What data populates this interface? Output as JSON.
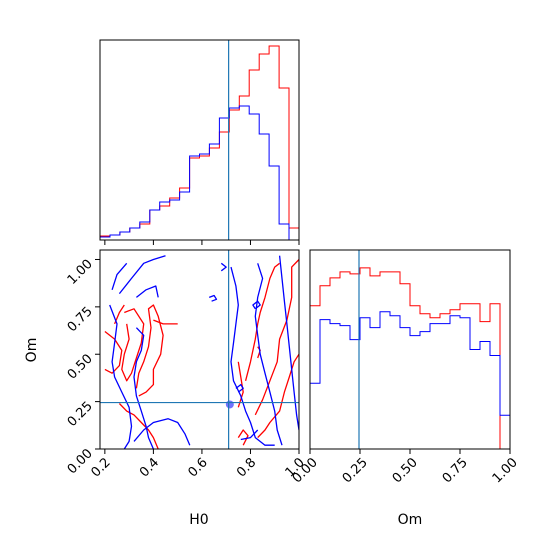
{
  "chart_data": {
    "type": "corner",
    "params": [
      "H0",
      "Om"
    ],
    "truth": {
      "H0": 0.71,
      "Om": 0.245
    },
    "colors": {
      "red": "#ff0000",
      "blue": "#0000ff",
      "truth": "#1f77b4"
    },
    "hist_H0": {
      "range": [
        0.18,
        1.0
      ],
      "edges": [
        0.18,
        0.221,
        0.262,
        0.303,
        0.344,
        0.385,
        0.426,
        0.467,
        0.508,
        0.549,
        0.59,
        0.631,
        0.672,
        0.713,
        0.754,
        0.795,
        0.836,
        0.877,
        0.918,
        0.959,
        1.0
      ],
      "series": [
        {
          "color": "red",
          "values": [
            0.02,
            0.025,
            0.04,
            0.06,
            0.08,
            0.15,
            0.17,
            0.21,
            0.26,
            0.41,
            0.42,
            0.46,
            0.54,
            0.65,
            0.72,
            0.85,
            0.93,
            0.97,
            0.76,
            0.06
          ]
        },
        {
          "color": "blue",
          "values": [
            0.015,
            0.025,
            0.04,
            0.06,
            0.09,
            0.15,
            0.19,
            0.2,
            0.24,
            0.42,
            0.43,
            0.48,
            0.61,
            0.66,
            0.67,
            0.63,
            0.53,
            0.37,
            0.08,
            0.0
          ]
        }
      ]
    },
    "hist_Om": {
      "range": [
        0.0,
        1.0
      ],
      "edges": [
        0.0,
        0.05,
        0.1,
        0.15,
        0.2,
        0.25,
        0.3,
        0.35,
        0.4,
        0.45,
        0.5,
        0.55,
        0.6,
        0.65,
        0.7,
        0.75,
        0.8,
        0.85,
        0.9,
        0.95,
        1.0
      ],
      "series": [
        {
          "color": "red",
          "values": [
            0.72,
            0.82,
            0.86,
            0.89,
            0.88,
            0.91,
            0.87,
            0.89,
            0.89,
            0.83,
            0.72,
            0.68,
            0.66,
            0.68,
            0.7,
            0.73,
            0.73,
            0.64,
            0.73,
            0.0
          ]
        },
        {
          "color": "blue",
          "values": [
            0.33,
            0.65,
            0.63,
            0.62,
            0.55,
            0.66,
            0.61,
            0.69,
            0.67,
            0.61,
            0.57,
            0.59,
            0.63,
            0.63,
            0.67,
            0.66,
            0.5,
            0.54,
            0.47,
            0.17
          ]
        }
      ]
    },
    "joint": {
      "x_range": [
        0.18,
        1.0
      ],
      "y_range": [
        0.0,
        1.05
      ],
      "contours": [
        {
          "color": "red",
          "points": [
            [
              0.2,
              0.62
            ],
            [
              0.24,
              0.58
            ],
            [
              0.27,
              0.52
            ],
            [
              0.26,
              0.44
            ],
            [
              0.23,
              0.4
            ],
            [
              0.2,
              0.42
            ]
          ]
        },
        {
          "color": "red",
          "points": [
            [
              0.28,
              0.72
            ],
            [
              0.32,
              0.74
            ],
            [
              0.36,
              0.66
            ],
            [
              0.35,
              0.56
            ],
            [
              0.33,
              0.48
            ],
            [
              0.31,
              0.4
            ],
            [
              0.29,
              0.36
            ],
            [
              0.27,
              0.42
            ],
            [
              0.28,
              0.5
            ],
            [
              0.3,
              0.58
            ],
            [
              0.29,
              0.66
            ]
          ]
        },
        {
          "color": "red",
          "points": [
            [
              0.34,
              0.28
            ],
            [
              0.37,
              0.3
            ],
            [
              0.4,
              0.34
            ],
            [
              0.4,
              0.42
            ],
            [
              0.43,
              0.5
            ],
            [
              0.44,
              0.6
            ],
            [
              0.42,
              0.7
            ],
            [
              0.4,
              0.76
            ],
            [
              0.38,
              0.74
            ],
            [
              0.39,
              0.64
            ],
            [
              0.38,
              0.54
            ],
            [
              0.36,
              0.46
            ],
            [
              0.34,
              0.4
            ],
            [
              0.33,
              0.32
            ]
          ]
        },
        {
          "color": "red",
          "points": [
            [
              0.26,
              0.24
            ],
            [
              0.29,
              0.2
            ],
            [
              0.32,
              0.18
            ],
            [
              0.35,
              0.14
            ],
            [
              0.38,
              0.1
            ],
            [
              0.4,
              0.06
            ],
            [
              0.42,
              0.0
            ]
          ]
        },
        {
          "color": "red",
          "points": [
            [
              0.4,
              0.68
            ],
            [
              0.44,
              0.66
            ],
            [
              0.5,
              0.66
            ]
          ]
        },
        {
          "color": "red",
          "points": [
            [
              0.24,
              0.66
            ],
            [
              0.26,
              0.72
            ],
            [
              0.28,
              0.76
            ]
          ]
        },
        {
          "color": "red",
          "points": [
            [
              0.77,
              0.02
            ],
            [
              0.79,
              0.07
            ],
            [
              0.77,
              0.1
            ],
            [
              0.75,
              0.06
            ]
          ]
        },
        {
          "color": "red",
          "points": [
            [
              0.82,
              0.18
            ],
            [
              0.85,
              0.26
            ],
            [
              0.88,
              0.36
            ],
            [
              0.91,
              0.46
            ],
            [
              0.92,
              0.58
            ],
            [
              0.95,
              0.68
            ],
            [
              0.97,
              0.8
            ],
            [
              0.97,
              0.96
            ],
            [
              1.0,
              1.0
            ]
          ]
        },
        {
          "color": "red",
          "points": [
            [
              0.78,
              0.36
            ],
            [
              0.8,
              0.46
            ],
            [
              0.82,
              0.58
            ],
            [
              0.83,
              0.66
            ],
            [
              0.84,
              0.72
            ],
            [
              0.86,
              0.8
            ],
            [
              0.88,
              0.9
            ],
            [
              0.9,
              0.96
            ],
            [
              0.92,
              0.98
            ]
          ]
        },
        {
          "color": "red",
          "points": [
            [
              0.83,
              0.06
            ],
            [
              0.86,
              0.1
            ],
            [
              0.88,
              0.14
            ],
            [
              0.92,
              0.2
            ],
            [
              0.94,
              0.3
            ],
            [
              0.96,
              0.38
            ],
            [
              0.98,
              0.46
            ],
            [
              1.0,
              0.5
            ]
          ]
        },
        {
          "color": "red",
          "points": [
            [
              0.75,
              0.22
            ],
            [
              0.77,
              0.3
            ],
            [
              0.76,
              0.38
            ],
            [
              0.75,
              0.46
            ]
          ]
        },
        {
          "color": "red",
          "points": [
            [
              0.83,
              0.48
            ],
            [
              0.84,
              0.52
            ],
            [
              0.83,
              0.54
            ]
          ]
        },
        {
          "color": "blue",
          "points": [
            [
              0.22,
              0.76
            ],
            [
              0.25,
              0.66
            ],
            [
              0.24,
              0.56
            ],
            [
              0.23,
              0.46
            ],
            [
              0.24,
              0.38
            ],
            [
              0.27,
              0.3
            ],
            [
              0.3,
              0.22
            ],
            [
              0.31,
              0.12
            ],
            [
              0.3,
              0.04
            ],
            [
              0.28,
              0.0
            ]
          ]
        },
        {
          "color": "blue",
          "points": [
            [
              0.26,
              0.82
            ],
            [
              0.31,
              0.9
            ],
            [
              0.36,
              0.98
            ],
            [
              0.4,
              1.0
            ],
            [
              0.45,
              1.02
            ]
          ]
        },
        {
          "color": "blue",
          "points": [
            [
              0.23,
              0.84
            ],
            [
              0.25,
              0.92
            ],
            [
              0.29,
              0.98
            ]
          ]
        },
        {
          "color": "blue",
          "points": [
            [
              0.33,
              0.64
            ],
            [
              0.36,
              0.6
            ],
            [
              0.35,
              0.52
            ],
            [
              0.33,
              0.46
            ],
            [
              0.32,
              0.38
            ],
            [
              0.33,
              0.28
            ],
            [
              0.35,
              0.2
            ],
            [
              0.37,
              0.12
            ],
            [
              0.38,
              0.06
            ],
            [
              0.4,
              0.0
            ]
          ]
        },
        {
          "color": "blue",
          "points": [
            [
              0.32,
              0.04
            ],
            [
              0.36,
              0.1
            ],
            [
              0.4,
              0.14
            ],
            [
              0.46,
              0.16
            ],
            [
              0.5,
              0.14
            ],
            [
              0.53,
              0.08
            ],
            [
              0.55,
              0.02
            ]
          ]
        },
        {
          "color": "blue",
          "points": [
            [
              0.33,
              0.8
            ],
            [
              0.37,
              0.84
            ],
            [
              0.41,
              0.86
            ],
            [
              0.42,
              0.8
            ]
          ]
        },
        {
          "color": "blue",
          "points": [
            [
              0.68,
              0.94
            ],
            [
              0.7,
              0.96
            ],
            [
              0.68,
              0.98
            ]
          ]
        },
        {
          "color": "blue",
          "points": [
            [
              0.64,
              0.78
            ],
            [
              0.66,
              0.79
            ],
            [
              0.65,
              0.81
            ],
            [
              0.63,
              0.8
            ]
          ]
        },
        {
          "color": "blue",
          "points": [
            [
              0.72,
              0.96
            ],
            [
              0.74,
              0.86
            ],
            [
              0.75,
              0.76
            ],
            [
              0.74,
              0.66
            ],
            [
              0.73,
              0.56
            ],
            [
              0.72,
              0.46
            ],
            [
              0.73,
              0.36
            ],
            [
              0.76,
              0.28
            ],
            [
              0.78,
              0.2
            ],
            [
              0.8,
              0.14
            ],
            [
              0.82,
              0.06
            ],
            [
              0.86,
              0.02
            ],
            [
              0.9,
              0.02
            ]
          ]
        },
        {
          "color": "blue",
          "points": [
            [
              0.83,
              0.98
            ],
            [
              0.85,
              0.9
            ],
            [
              0.83,
              0.8
            ],
            [
              0.82,
              0.7
            ],
            [
              0.83,
              0.6
            ],
            [
              0.84,
              0.5
            ],
            [
              0.86,
              0.4
            ],
            [
              0.88,
              0.3
            ],
            [
              0.9,
              0.2
            ],
            [
              0.91,
              0.1
            ],
            [
              0.93,
              0.02
            ]
          ]
        },
        {
          "color": "blue",
          "points": [
            [
              0.92,
              1.02
            ],
            [
              0.93,
              0.9
            ],
            [
              0.94,
              0.78
            ],
            [
              0.95,
              0.66
            ],
            [
              0.96,
              0.54
            ],
            [
              0.97,
              0.42
            ],
            [
              0.98,
              0.3
            ],
            [
              0.99,
              0.18
            ],
            [
              1.0,
              0.1
            ]
          ]
        },
        {
          "color": "blue",
          "points": [
            [
              0.82,
              0.74
            ],
            [
              0.84,
              0.76
            ],
            [
              0.83,
              0.78
            ],
            [
              0.81,
              0.76
            ],
            [
              0.82,
              0.74
            ]
          ]
        },
        {
          "color": "blue",
          "points": [
            [
              0.75,
              0.3
            ],
            [
              0.77,
              0.32
            ],
            [
              0.76,
              0.34
            ],
            [
              0.74,
              0.32
            ]
          ]
        },
        {
          "color": "blue",
          "points": [
            [
              0.76,
              0.05
            ],
            [
              0.8,
              0.06
            ],
            [
              0.83,
              0.1
            ]
          ]
        }
      ],
      "blue_blob": {
        "x": 0.715,
        "y": 0.235
      }
    },
    "axes": {
      "H0": {
        "label": "H0",
        "ticks": [
          0.2,
          0.4,
          0.6,
          0.8,
          1.0
        ],
        "tick_labels": [
          "0.2",
          "0.4",
          "0.6",
          "0.8",
          "1.0"
        ]
      },
      "Om": {
        "label": "Om",
        "ticks": [
          0.0,
          0.25,
          0.5,
          0.75,
          1.0
        ],
        "tick_labels": [
          "0.00",
          "0.25",
          "0.50",
          "0.75",
          "1.00"
        ]
      }
    }
  }
}
